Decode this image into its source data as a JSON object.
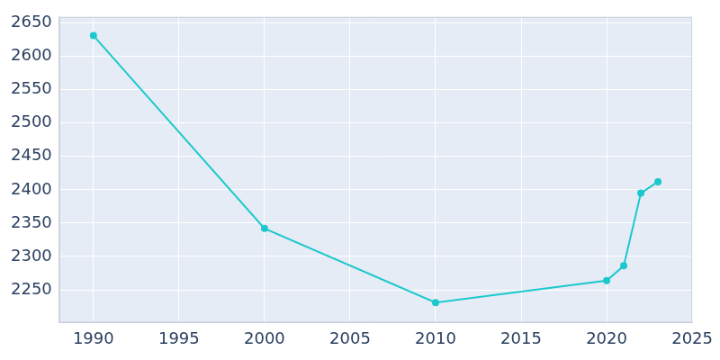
{
  "chart_data": {
    "type": "line",
    "x": [
      1990,
      2000,
      2010,
      2020,
      2021,
      2022,
      2023
    ],
    "values": [
      2631,
      2342,
      2231,
      2264,
      2286,
      2395,
      2412
    ],
    "color": "#1cc8cc",
    "marker": "circle",
    "line_style": "solid",
    "xlim": [
      1988,
      2025
    ],
    "xticks": [
      1990,
      1995,
      2000,
      2005,
      2010,
      2015,
      2020,
      2025
    ],
    "ylim": [
      2201,
      2659
    ],
    "yticks": [
      2250,
      2300,
      2350,
      2400,
      2450,
      2500,
      2550,
      2600,
      2650
    ],
    "grid": true
  }
}
